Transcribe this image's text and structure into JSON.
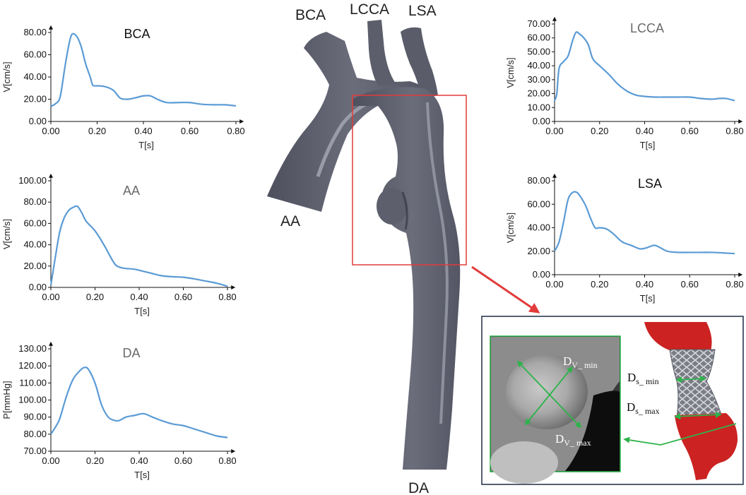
{
  "vessel_labels": {
    "bca": "BCA",
    "lcca": "LCCA",
    "lsa": "LSA",
    "aa": "AA",
    "da": "DA"
  },
  "inset": {
    "dv_min_main": "D",
    "dv_min_sub": "V_ min",
    "dv_max_main": "D",
    "dv_max_sub": "V_ max",
    "ds_min_main": "D",
    "ds_min_sub": "s_ min",
    "ds_max_main": "D",
    "ds_max_sub": "s_ max"
  },
  "colors": {
    "curve": "#5b9bd5",
    "roi_box": "#e23b3b",
    "measure": "#2db34a",
    "vessel": "#5f6170",
    "stent_vessel": "#cc2222"
  },
  "chart_data": [
    {
      "id": "bca",
      "type": "line",
      "title": "BCA",
      "title_style": "dark",
      "xlabel": "T[s]",
      "ylabel": "V[cm/s]",
      "xlim": [
        0,
        0.8
      ],
      "ylim": [
        0,
        80
      ],
      "xticks": [
        "0.00",
        "0.20",
        "0.40",
        "0.60",
        "0.80"
      ],
      "yticks": [
        "0.00",
        "20.00",
        "40.00",
        "60.00",
        "80.00"
      ],
      "x": [
        0,
        0.02,
        0.04,
        0.06,
        0.075,
        0.09,
        0.11,
        0.13,
        0.15,
        0.17,
        0.18,
        0.19,
        0.21,
        0.24,
        0.27,
        0.3,
        0.33,
        0.36,
        0.4,
        0.43,
        0.46,
        0.5,
        0.55,
        0.6,
        0.65,
        0.7,
        0.75,
        0.8
      ],
      "values": [
        13.5,
        16,
        22,
        48,
        66,
        78,
        77,
        68,
        52,
        40,
        33,
        32,
        32,
        31,
        28,
        21,
        20,
        21,
        23,
        23,
        20,
        17,
        17,
        17,
        15.5,
        15,
        15,
        14
      ]
    },
    {
      "id": "aa",
      "type": "line",
      "title": "AA",
      "title_style": "grey",
      "xlabel": "T[s]",
      "ylabel": "V[cm/s]",
      "xlim": [
        0,
        0.8
      ],
      "ylim": [
        0,
        100
      ],
      "xticks": [
        "0.00",
        "0.20",
        "0.40",
        "0.60",
        "0.80"
      ],
      "yticks": [
        "0.00",
        "20.00",
        "40.00",
        "60.00",
        "80.00",
        "100.00"
      ],
      "x": [
        0,
        0.02,
        0.04,
        0.06,
        0.08,
        0.1,
        0.12,
        0.14,
        0.16,
        0.2,
        0.24,
        0.28,
        0.3,
        0.33,
        0.38,
        0.42,
        0.46,
        0.5,
        0.55,
        0.6,
        0.65,
        0.7,
        0.75,
        0.8
      ],
      "values": [
        2,
        28,
        52,
        65,
        72,
        75,
        76,
        70,
        62,
        53,
        40,
        25,
        20,
        18,
        17,
        15,
        13,
        11,
        10,
        9.5,
        8,
        6,
        4,
        1
      ]
    },
    {
      "id": "da",
      "type": "line",
      "title": "DA",
      "title_style": "grey",
      "xlabel": "T[s]",
      "ylabel": "P[mmHg]",
      "xlim": [
        0,
        0.8
      ],
      "ylim": [
        70,
        130
      ],
      "xticks": [
        "0.00",
        "0.20",
        "0.40",
        "0.60",
        "0.80"
      ],
      "yticks": [
        "70.00",
        "80.00",
        "90.00",
        "100.00",
        "110.00",
        "120.00",
        "130.00"
      ],
      "x": [
        0,
        0.02,
        0.04,
        0.07,
        0.1,
        0.13,
        0.15,
        0.17,
        0.2,
        0.23,
        0.26,
        0.29,
        0.31,
        0.34,
        0.38,
        0.42,
        0.46,
        0.5,
        0.55,
        0.6,
        0.65,
        0.7,
        0.75,
        0.8
      ],
      "values": [
        80,
        84,
        89,
        102,
        112,
        117,
        119,
        118,
        110,
        97,
        90,
        88,
        88,
        90,
        91,
        92,
        90,
        88,
        86,
        85,
        83,
        81,
        79,
        78
      ]
    },
    {
      "id": "lcca",
      "type": "line",
      "title": "LCCA",
      "title_style": "grey",
      "xlabel": "T[s]",
      "ylabel": "V[cm/s]",
      "xlim": [
        0,
        0.8
      ],
      "ylim": [
        0,
        70
      ],
      "xticks": [
        "0.00",
        "0.20",
        "0.40",
        "0.60",
        "0.80"
      ],
      "yticks": [
        "0.00",
        "10.00",
        "20.00",
        "30.00",
        "40.00",
        "50.00",
        "60.00",
        "70.00"
      ],
      "x": [
        0,
        0.01,
        0.02,
        0.04,
        0.06,
        0.08,
        0.095,
        0.11,
        0.13,
        0.15,
        0.17,
        0.2,
        0.24,
        0.28,
        0.32,
        0.36,
        0.4,
        0.45,
        0.5,
        0.55,
        0.6,
        0.65,
        0.7,
        0.73,
        0.76,
        0.8
      ],
      "values": [
        15,
        20,
        38,
        43,
        47,
        58,
        64,
        63,
        60,
        55,
        45,
        40,
        34,
        27,
        22,
        19,
        18,
        17.5,
        17.5,
        17.5,
        17.5,
        16.5,
        16,
        16.5,
        16.5,
        15
      ]
    },
    {
      "id": "lsa",
      "type": "line",
      "title": "LSA",
      "title_style": "dark",
      "xlabel": "T[s]",
      "ylabel": "V[cm/s]",
      "xlim": [
        0,
        0.8
      ],
      "ylim": [
        0,
        80
      ],
      "xticks": [
        "0.00",
        "0.20",
        "0.40",
        "0.60",
        "0.80"
      ],
      "yticks": [
        "0.00",
        "20.00",
        "40.00",
        "60.00",
        "80.00"
      ],
      "x": [
        0,
        0.02,
        0.04,
        0.06,
        0.08,
        0.1,
        0.12,
        0.14,
        0.16,
        0.18,
        0.2,
        0.23,
        0.26,
        0.3,
        0.34,
        0.38,
        0.41,
        0.44,
        0.46,
        0.5,
        0.55,
        0.6,
        0.65,
        0.7,
        0.75,
        0.8
      ],
      "values": [
        20,
        28,
        45,
        64,
        70,
        70,
        65,
        58,
        48,
        40,
        40,
        39,
        35,
        28,
        25,
        22,
        23,
        25,
        24,
        20,
        19,
        19,
        19,
        19,
        18.5,
        18
      ]
    }
  ]
}
